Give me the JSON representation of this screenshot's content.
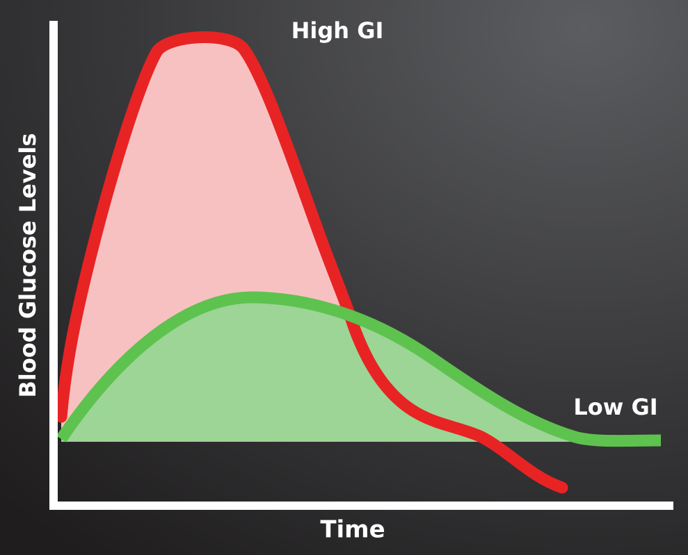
{
  "axes": {
    "y_label": "Blood Glucose Levels",
    "x_label": "Time"
  },
  "curves": {
    "high_gi": "High GI",
    "low_gi": "Low GI"
  }
}
